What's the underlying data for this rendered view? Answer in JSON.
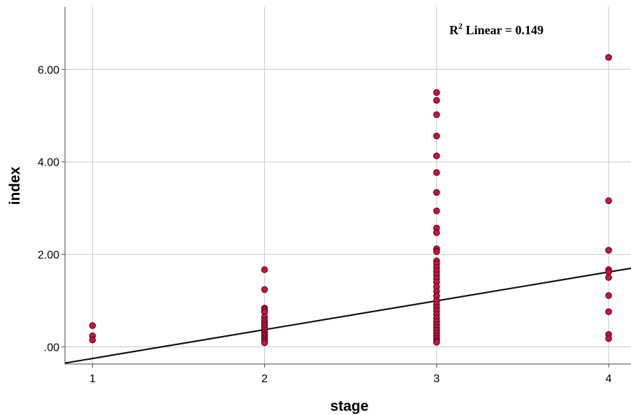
{
  "chart_data": {
    "type": "scatter",
    "xlabel": "stage",
    "ylabel": "index",
    "x_ticks": [
      "1",
      "2",
      "3",
      "4"
    ],
    "y_ticks": [
      ".00",
      "2.00",
      "4.00",
      "6.00"
    ],
    "xlim": [
      0.84,
      4.13
    ],
    "ylim": [
      -0.37,
      7.35
    ],
    "grid": true,
    "annotation": {
      "prefix": "R",
      "superscript": "2",
      "text": " Linear = 0.149"
    },
    "fit_line": {
      "x": [
        0.84,
        4.13
      ],
      "y": [
        -0.35,
        1.7
      ]
    },
    "marker_fill": "#d1103a",
    "marker_stroke": "#3a0d18",
    "points": [
      {
        "x": 1,
        "y": 0.46
      },
      {
        "x": 1,
        "y": 0.24
      },
      {
        "x": 1,
        "y": 0.15
      },
      {
        "x": 2,
        "y": 1.67
      },
      {
        "x": 2,
        "y": 1.24
      },
      {
        "x": 2,
        "y": 0.84
      },
      {
        "x": 2,
        "y": 0.8
      },
      {
        "x": 2,
        "y": 0.75
      },
      {
        "x": 2,
        "y": 0.65
      },
      {
        "x": 2,
        "y": 0.58
      },
      {
        "x": 2,
        "y": 0.52
      },
      {
        "x": 2,
        "y": 0.47
      },
      {
        "x": 2,
        "y": 0.42
      },
      {
        "x": 2,
        "y": 0.37
      },
      {
        "x": 2,
        "y": 0.32
      },
      {
        "x": 2,
        "y": 0.28
      },
      {
        "x": 2,
        "y": 0.24
      },
      {
        "x": 2,
        "y": 0.2
      },
      {
        "x": 2,
        "y": 0.16
      },
      {
        "x": 2,
        "y": 0.12
      },
      {
        "x": 2,
        "y": 0.09
      },
      {
        "x": 3,
        "y": 5.5
      },
      {
        "x": 3,
        "y": 5.33
      },
      {
        "x": 3,
        "y": 5.02
      },
      {
        "x": 3,
        "y": 4.56
      },
      {
        "x": 3,
        "y": 4.13
      },
      {
        "x": 3,
        "y": 3.77
      },
      {
        "x": 3,
        "y": 3.34
      },
      {
        "x": 3,
        "y": 2.94
      },
      {
        "x": 3,
        "y": 2.57
      },
      {
        "x": 3,
        "y": 2.47
      },
      {
        "x": 3,
        "y": 2.12
      },
      {
        "x": 3,
        "y": 2.06
      },
      {
        "x": 3,
        "y": 1.86
      },
      {
        "x": 3,
        "y": 1.8
      },
      {
        "x": 3,
        "y": 1.72
      },
      {
        "x": 3,
        "y": 1.64
      },
      {
        "x": 3,
        "y": 1.56
      },
      {
        "x": 3,
        "y": 1.48
      },
      {
        "x": 3,
        "y": 1.4
      },
      {
        "x": 3,
        "y": 1.3
      },
      {
        "x": 3,
        "y": 1.2
      },
      {
        "x": 3,
        "y": 1.1
      },
      {
        "x": 3,
        "y": 1.0
      },
      {
        "x": 3,
        "y": 0.92
      },
      {
        "x": 3,
        "y": 0.85
      },
      {
        "x": 3,
        "y": 0.78
      },
      {
        "x": 3,
        "y": 0.7
      },
      {
        "x": 3,
        "y": 0.62
      },
      {
        "x": 3,
        "y": 0.55
      },
      {
        "x": 3,
        "y": 0.48
      },
      {
        "x": 3,
        "y": 0.42
      },
      {
        "x": 3,
        "y": 0.36
      },
      {
        "x": 3,
        "y": 0.3
      },
      {
        "x": 3,
        "y": 0.24
      },
      {
        "x": 3,
        "y": 0.18
      },
      {
        "x": 3,
        "y": 0.13
      },
      {
        "x": 3,
        "y": 0.1
      },
      {
        "x": 4,
        "y": 6.26
      },
      {
        "x": 4,
        "y": 3.16
      },
      {
        "x": 4,
        "y": 2.09
      },
      {
        "x": 4,
        "y": 1.67
      },
      {
        "x": 4,
        "y": 1.62
      },
      {
        "x": 4,
        "y": 1.5
      },
      {
        "x": 4,
        "y": 1.11
      },
      {
        "x": 4,
        "y": 0.76
      },
      {
        "x": 4,
        "y": 0.27
      },
      {
        "x": 4,
        "y": 0.18
      }
    ]
  }
}
